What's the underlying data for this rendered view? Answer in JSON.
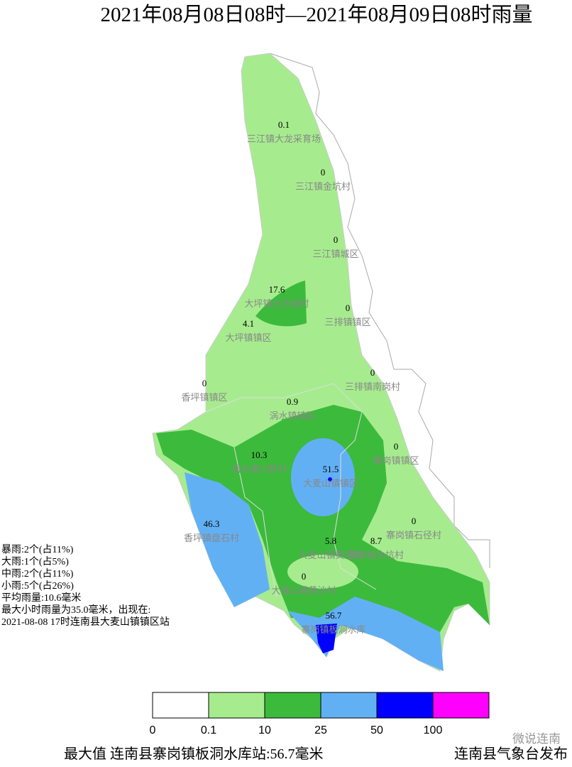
{
  "header": {
    "title": "2021年08月08日08时—2021年08月09日08时雨量"
  },
  "stations": [
    {
      "value": "0.1",
      "name": "三江镇大龙采育场"
    },
    {
      "value": "0",
      "name": "三江镇金坑村"
    },
    {
      "value": "0",
      "name": "三江镇城区"
    },
    {
      "value": "17.6",
      "name": "大坪镇大古坳村"
    },
    {
      "value": "0",
      "name": "三排镇镇区"
    },
    {
      "value": "4.1",
      "name": "大坪镇镇区"
    },
    {
      "value": "0",
      "name": "三排镇南岗村"
    },
    {
      "value": "0",
      "name": "香坪镇镇区"
    },
    {
      "value": "0.9",
      "name": "涡水镇镇区"
    },
    {
      "value": "10.3",
      "name": "涡水镇六联村"
    },
    {
      "value": "51.5",
      "name": "大麦山镇镇区"
    },
    {
      "value": "0",
      "name": "寨岗镇镇区"
    },
    {
      "value": "46.3",
      "name": "香坪镇盘石村"
    },
    {
      "value": "0",
      "name": "寨岗镇石径村"
    },
    {
      "value": "5.8",
      "name": "大麦山镇黄连村"
    },
    {
      "value": "8.7",
      "name": "寨岗镇水坑村"
    },
    {
      "value": "0",
      "name": "大麦山镇黄沙村"
    },
    {
      "value": "56.7",
      "name": "寨岗镇板洞水库"
    }
  ],
  "stats": [
    "暴雨:2个(占11%)",
    "大雨:1个(占5%)",
    "中雨:2个(占11%)",
    "小雨:5个(占26%)",
    "平均雨量:10.6毫米",
    "最大小时雨量为35.0毫米，出现在:",
    "2021-08-08 17时连南县大麦山镇镇区站"
  ],
  "legend": {
    "ticks": [
      0,
      0.1,
      10,
      25,
      50,
      100
    ],
    "colors": [
      "#ffffff",
      "#a6ec8e",
      "#3cba3c",
      "#62b0f4",
      "#0000ff",
      "#ff00ff"
    ]
  },
  "footer": {
    "max": "最大值 连南县寨岗镇板洞水库站:56.7毫米",
    "publisher": "连南县气象台发布",
    "watermark": "微说连南"
  }
}
